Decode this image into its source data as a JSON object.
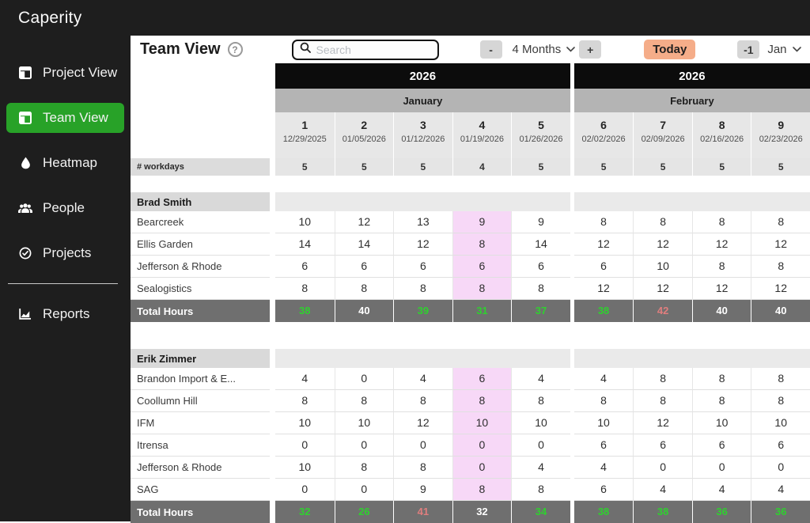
{
  "app": {
    "name": "Caperity"
  },
  "sidebar": {
    "items": [
      {
        "label": "Project View",
        "icon": "layout-icon",
        "active": false
      },
      {
        "label": "Team View",
        "icon": "layout-icon",
        "active": true
      },
      {
        "label": "Heatmap",
        "icon": "droplet-icon",
        "active": false
      },
      {
        "label": "People",
        "icon": "people-icon",
        "active": false
      },
      {
        "label": "Projects",
        "icon": "check-circle-icon",
        "active": false
      },
      {
        "divider": true
      },
      {
        "label": "Reports",
        "icon": "chart-icon",
        "active": false
      }
    ]
  },
  "toolbar": {
    "title": "Team View",
    "help_glyph": "?",
    "search_placeholder": "Search",
    "zoom_out_label": "-",
    "range_label": "4 Months",
    "zoom_in_label": "+",
    "today_label": "Today",
    "step_label": "-1",
    "month_label": "Jan"
  },
  "table": {
    "year_groups": [
      {
        "label": "2026",
        "span": 5
      },
      {
        "label": "2026",
        "span": 4
      }
    ],
    "month_groups": [
      {
        "label": "January",
        "span": 5
      },
      {
        "label": "February",
        "span": 4
      }
    ],
    "weeks": [
      {
        "num": "1",
        "start": "12/29/2025"
      },
      {
        "num": "2",
        "start": "01/05/2026"
      },
      {
        "num": "3",
        "start": "01/12/2026"
      },
      {
        "num": "4",
        "start": "01/19/2026"
      },
      {
        "num": "5",
        "start": "01/26/2026"
      },
      {
        "num": "6",
        "start": "02/02/2026"
      },
      {
        "num": "7",
        "start": "02/09/2026"
      },
      {
        "num": "8",
        "start": "02/16/2026"
      },
      {
        "num": "9",
        "start": "02/23/2026"
      }
    ],
    "workdays_label": "# workdays",
    "workdays": [
      "5",
      "5",
      "5",
      "4",
      "5",
      "5",
      "5",
      "5",
      "5"
    ],
    "highlight_week_index": 3,
    "total_label": "Total Hours",
    "sections": [
      {
        "person": "Brad Smith",
        "projects": [
          {
            "name": "Bearcreek",
            "hours": [
              10,
              12,
              13,
              9,
              9,
              8,
              8,
              8,
              8
            ]
          },
          {
            "name": "Ellis Garden",
            "hours": [
              14,
              14,
              12,
              8,
              14,
              12,
              12,
              12,
              12
            ]
          },
          {
            "name": "Jefferson & Rhode",
            "hours": [
              6,
              6,
              6,
              6,
              6,
              6,
              10,
              8,
              8
            ]
          },
          {
            "name": "Sealogistics",
            "hours": [
              8,
              8,
              8,
              8,
              8,
              12,
              12,
              12,
              12
            ]
          }
        ],
        "totals": [
          {
            "value": "38",
            "status": "green"
          },
          {
            "value": "40",
            "status": "white"
          },
          {
            "value": "39",
            "status": "green"
          },
          {
            "value": "31",
            "status": "green"
          },
          {
            "value": "37",
            "status": "green"
          },
          {
            "value": "38",
            "status": "green"
          },
          {
            "value": "42",
            "status": "red"
          },
          {
            "value": "40",
            "status": "white"
          },
          {
            "value": "40",
            "status": "white"
          }
        ]
      },
      {
        "person": "Erik Zimmer",
        "projects": [
          {
            "name": "Brandon Import & E...",
            "hours": [
              4,
              0,
              4,
              6,
              4,
              4,
              8,
              8,
              8
            ]
          },
          {
            "name": "Coollumn Hill",
            "hours": [
              8,
              8,
              8,
              8,
              8,
              8,
              8,
              8,
              8
            ]
          },
          {
            "name": "IFM",
            "hours": [
              10,
              10,
              12,
              10,
              10,
              10,
              12,
              10,
              10
            ]
          },
          {
            "name": "Itrensa",
            "hours": [
              0,
              0,
              0,
              0,
              0,
              6,
              6,
              6,
              6
            ]
          },
          {
            "name": "Jefferson & Rhode",
            "hours": [
              10,
              8,
              8,
              0,
              4,
              4,
              0,
              0,
              0
            ]
          },
          {
            "name": "SAG",
            "hours": [
              0,
              0,
              9,
              8,
              8,
              6,
              4,
              4,
              4
            ]
          }
        ],
        "totals": [
          {
            "value": "32",
            "status": "green"
          },
          {
            "value": "26",
            "status": "green"
          },
          {
            "value": "41",
            "status": "red"
          },
          {
            "value": "32",
            "status": "white"
          },
          {
            "value": "34",
            "status": "green"
          },
          {
            "value": "38",
            "status": "green"
          },
          {
            "value": "38",
            "status": "green"
          },
          {
            "value": "36",
            "status": "green"
          },
          {
            "value": "36",
            "status": "green"
          }
        ]
      }
    ]
  },
  "colors": {
    "sidebar_bg": "#1e1e1e",
    "accent_green": "#28a228",
    "today_orange": "#f5ad89",
    "highlight_pink": "#f7d8f7",
    "total_row_gray": "#6f6f6f",
    "total_green": "#2fd02f",
    "total_red": "#e07e7e"
  }
}
